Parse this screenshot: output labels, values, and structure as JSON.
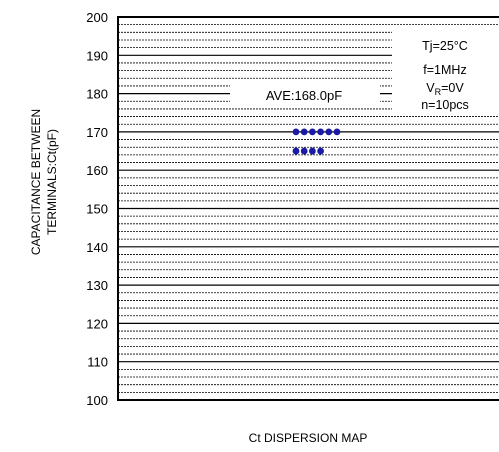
{
  "chart_data": {
    "type": "scatter",
    "title": "",
    "xlabel": "Ct DISPERSION MAP",
    "ylabel_lines": [
      "CAPACITANCE BETWEEN",
      "TERMINALS:Ct(pF)"
    ],
    "ylim": [
      100,
      200
    ],
    "yticks": [
      100,
      110,
      120,
      130,
      140,
      150,
      160,
      170,
      180,
      190,
      200
    ],
    "minor_grid_step": 2,
    "grid": true,
    "points": [
      {
        "y": 170
      },
      {
        "y": 170
      },
      {
        "y": 170
      },
      {
        "y": 170
      },
      {
        "y": 170
      },
      {
        "y": 170
      },
      {
        "y": 165
      },
      {
        "y": 165
      },
      {
        "y": 165
      },
      {
        "y": 165
      }
    ],
    "average_label": "AVE:168.0pF",
    "conditions": {
      "tj": "Tj=25°C",
      "f": "f=1MHz",
      "vr_prefix": "V",
      "vr_sub": "R",
      "vr_suffix": "=0V",
      "n": "n=10pcs"
    },
    "point_color": "#1a1aa6"
  }
}
